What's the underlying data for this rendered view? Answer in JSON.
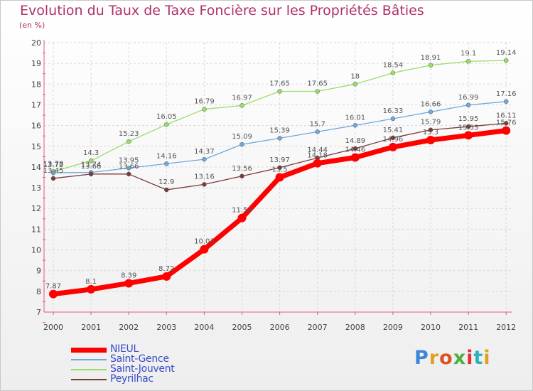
{
  "title": "Evolution du Taux de Taxe Foncière sur les Propriétés Bâties",
  "subtitle": "(en %)",
  "logo": {
    "text": "Proxiti",
    "colors": [
      "#3a86d8",
      "#e0a020",
      "#e05020",
      "#4ab040",
      "#e03030",
      "#2ab0c0",
      "#e0a020"
    ]
  },
  "chart_data": {
    "type": "line",
    "x": [
      "2000",
      "2001",
      "2002",
      "2003",
      "2004",
      "2005",
      "2006",
      "2007",
      "2008",
      "2009",
      "2010",
      "2011",
      "2012"
    ],
    "ylim": [
      7,
      20
    ],
    "yticks": [
      "7",
      "8",
      "9",
      "10",
      "11",
      "12",
      "13",
      "14",
      "15",
      "16",
      "17",
      "18",
      "19",
      "20"
    ],
    "grid": true,
    "legend_position": "bottom-left",
    "series": [
      {
        "name": "NIEUL",
        "color": "#ff0000",
        "values": [
          7.87,
          8.1,
          8.39,
          8.72,
          10.03,
          11.54,
          13.5,
          14.18,
          14.46,
          14.96,
          15.3,
          15.53,
          15.76
        ],
        "labels": [
          "7.87",
          "8.1",
          "8.39",
          "8.72",
          "10.03",
          "11.54",
          "13.5",
          "14.18",
          "14.46",
          "14.96",
          "15.3",
          "15.53",
          "15.76"
        ]
      },
      {
        "name": "Saint-Gence",
        "color": "#6fa8dc",
        "values": [
          13.72,
          13.74,
          13.95,
          14.16,
          14.37,
          15.09,
          15.39,
          15.7,
          16.01,
          16.33,
          16.66,
          16.99,
          17.16
        ],
        "labels": [
          "13.72",
          "13.74",
          "13.95",
          "14.16",
          "14.37",
          "15.09",
          "15.39",
          "15.7",
          "16.01",
          "16.33",
          "16.66",
          "16.99",
          "17.16"
        ]
      },
      {
        "name": "Saint-Jouvent",
        "color": "#99dd66",
        "values": [
          13.78,
          14.3,
          15.23,
          16.05,
          16.79,
          16.97,
          17.65,
          17.65,
          18,
          18.54,
          18.91,
          19.1,
          19.14
        ],
        "labels": [
          "13.78",
          "14.3",
          "15.23",
          "16.05",
          "16.79",
          "16.97",
          "17.65",
          "17.65",
          "18",
          "18.54",
          "18.91",
          "19.1",
          "19.14"
        ]
      },
      {
        "name": "Peyrilhac",
        "color": "#7a3b3b",
        "values": [
          13.45,
          13.66,
          13.66,
          12.9,
          13.16,
          13.56,
          13.97,
          14.44,
          14.89,
          15.41,
          15.79,
          15.95,
          16.11
        ],
        "labels": [
          "13.45",
          "13.66",
          "13.66",
          "12.9",
          "13.16",
          "13.56",
          "13.97",
          "14.44",
          "14.89",
          "15.41",
          "15.79",
          "15.95",
          "16.11"
        ]
      }
    ]
  }
}
